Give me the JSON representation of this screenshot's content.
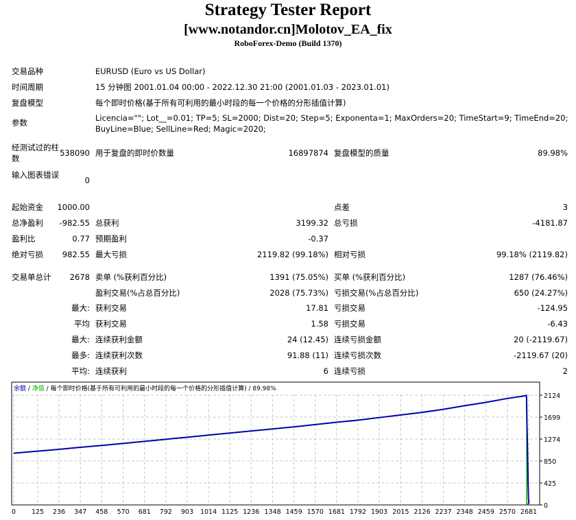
{
  "header": {
    "title": "Strategy Tester Report",
    "ea": "[www.notandor.cn]Molotov_EA_fix",
    "server": "RoboForex-Demo (Build 1370)"
  },
  "info": [
    {
      "label": "交易品种",
      "value": "EURUSD (Euro vs US Dollar)"
    },
    {
      "label": "时间周期",
      "value": "15 分钟图 2001.01.04 00:00 - 2022.12.30 21:00 (2001.01.03 - 2023.01.01)"
    },
    {
      "label": "复盘模型",
      "value": "每个即时价格(基于所有可利用的最小时段的每一个价格的分形插值计算)"
    },
    {
      "label": "参数",
      "value": "Licencia=\"\"; Lot__=0.01; TP=5; SL=2000; Dist=20; Step=5; Exponenta=1; MaxOrders=20; TimeStart=9; TimeEnd=20;",
      "value2": "BuyLine=Blue; SellLine=Red; Magic=2020;"
    }
  ],
  "stats": [
    [
      "经测试过的柱数",
      "538090",
      "用于复盘的即时价数量",
      "16897874",
      "复盘模型的质量",
      "89.98%"
    ],
    [
      "输入图表错误",
      "0",
      "",
      "",
      "",
      ""
    ],
    [
      "起始资金",
      "1000.00",
      "",
      "",
      "点差",
      "3"
    ],
    [
      "总净盈利",
      "-982.55",
      "总获利",
      "3199.32",
      "总亏损",
      "-4181.87"
    ],
    [
      "盈利比",
      "0.77",
      "预期盈利",
      "-0.37",
      "",
      ""
    ],
    [
      "绝对亏损",
      "982.55",
      "最大亏损",
      "2119.82 (99.18%)",
      "相对亏损",
      "99.18% (2119.82)"
    ],
    [
      "交易单总计",
      "2678",
      "卖单 (%获利百分比)",
      "1391 (75.05%)",
      "买单 (%获利百分比)",
      "1287 (76.46%)"
    ],
    [
      "",
      "",
      "盈利交易(%占总百分比)",
      "2028 (75.73%)",
      "亏损交易(%占总百分比)",
      "650 (24.27%)"
    ],
    [
      "",
      "最大:",
      "获利交易",
      "17.81",
      "亏损交易",
      "-124.95"
    ],
    [
      "",
      "平均",
      "获利交易",
      "1.58",
      "亏损交易",
      "-6.43"
    ],
    [
      "",
      "最大:",
      "连续获利金额",
      "24 (12.45)",
      "连续亏损金额",
      "20 (-2119.67)"
    ],
    [
      "",
      "最多:",
      "连续获利次数",
      "91.88 (11)",
      "连续亏损次数",
      "-2119.67 (20)"
    ],
    [
      "",
      "平均:",
      "连续获利",
      "6",
      "连续亏损",
      "2"
    ]
  ],
  "chart_data": {
    "type": "line",
    "legend": {
      "balance": "余额",
      "sep1": " / ",
      "equity": "净值",
      "sep2": " / ",
      "model": "每个即时价格(基于所有可利用的最小时段的每一个价格的分形插值计算)",
      "sep3": " / ",
      "quality": "89.98%"
    },
    "colors": {
      "balance": "#0000b0",
      "equity": "#00b000",
      "grid": "#c8c8c8"
    },
    "xticks": [
      0,
      125,
      236,
      347,
      458,
      570,
      681,
      792,
      903,
      1014,
      1125,
      1236,
      1348,
      1459,
      1570,
      1681,
      1792,
      1903,
      2015,
      2126,
      2237,
      2348,
      2459,
      2570,
      2681
    ],
    "yticks": [
      0,
      425,
      850,
      1274,
      1699,
      2124
    ],
    "xlim": [
      0,
      2725
    ],
    "ylim": [
      0,
      2400
    ],
    "grid": true,
    "series": [
      {
        "key": "balance",
        "x": [
          0,
          125,
          236,
          347,
          458,
          570,
          681,
          792,
          903,
          1014,
          1125,
          1236,
          1348,
          1459,
          1570,
          1681,
          1792,
          1903,
          2015,
          2126,
          2237,
          2348,
          2459,
          2570,
          2660,
          2668,
          2670,
          2672,
          2674,
          2676,
          2678,
          2680,
          2682
        ],
        "y": [
          1000,
          1040,
          1075,
          1115,
          1150,
          1190,
          1230,
          1270,
          1310,
          1350,
          1390,
          1430,
          1470,
          1510,
          1555,
          1600,
          1640,
          1690,
          1740,
          1790,
          1850,
          1920,
          1985,
          2060,
          2110,
          2120,
          2080,
          1550,
          1270,
          850,
          420,
          120,
          20
        ]
      },
      {
        "key": "equity",
        "x": [
          0,
          125,
          236,
          347,
          458,
          570,
          681,
          792,
          903,
          1014,
          1125,
          1236,
          1348,
          1459,
          1570,
          1681,
          1792,
          1903,
          2015,
          2126,
          2237,
          2348,
          2459,
          2570,
          2660,
          2668,
          2670,
          2671,
          2671,
          2682
        ],
        "y": [
          1000,
          1040,
          1075,
          1115,
          1150,
          1190,
          1230,
          1270,
          1310,
          1350,
          1390,
          1430,
          1470,
          1510,
          1555,
          1600,
          1640,
          1690,
          1740,
          1790,
          1850,
          1920,
          1985,
          2060,
          2110,
          2120,
          2080,
          1550,
          20,
          20
        ]
      }
    ]
  }
}
